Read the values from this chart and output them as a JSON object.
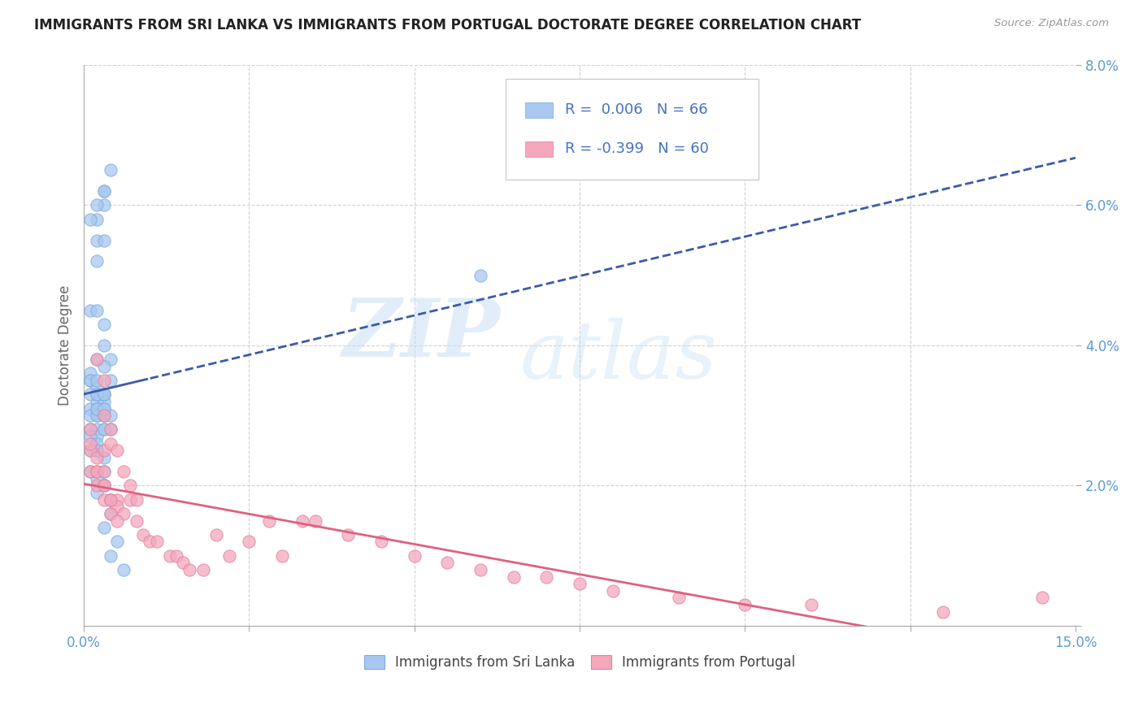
{
  "title": "IMMIGRANTS FROM SRI LANKA VS IMMIGRANTS FROM PORTUGAL DOCTORATE DEGREE CORRELATION CHART",
  "source": "Source: ZipAtlas.com",
  "ylabel": "Doctorate Degree",
  "xlim": [
    0.0,
    0.15
  ],
  "ylim": [
    0.0,
    0.08
  ],
  "xtick_positions": [
    0.0,
    0.025,
    0.05,
    0.075,
    0.1,
    0.125,
    0.15
  ],
  "xticklabels_shown": {
    "0.0": "0.0%",
    "0.15": "15.0%"
  },
  "ytick_positions": [
    0.0,
    0.02,
    0.04,
    0.06,
    0.08
  ],
  "yticklabels": [
    "",
    "2.0%",
    "4.0%",
    "6.0%",
    "8.0%"
  ],
  "sri_lanka_color": "#A8C8F0",
  "portugal_color": "#F4A8BC",
  "sri_lanka_line_color": "#3B5BA5",
  "portugal_line_color": "#E06080",
  "legend_label1": "Immigrants from Sri Lanka",
  "legend_label2": "Immigrants from Portugal",
  "legend_r1_prefix": "R = ",
  "legend_r1_value": " 0.006",
  "legend_r1_n": "N = 66",
  "legend_r2_prefix": "R = ",
  "legend_r2_value": "-0.399",
  "legend_r2_n": "N = 60",
  "watermark_line1": "ZIP",
  "watermark_line2": "atlas",
  "background_color": "#FFFFFF",
  "grid_color": "#CCCCCC",
  "sri_lanka_x": [
    0.001,
    0.002,
    0.001,
    0.001,
    0.002,
    0.002,
    0.001,
    0.002,
    0.001,
    0.001,
    0.002,
    0.002,
    0.003,
    0.003,
    0.001,
    0.001,
    0.002,
    0.002,
    0.003,
    0.003,
    0.002,
    0.003,
    0.003,
    0.004,
    0.003,
    0.002,
    0.001,
    0.002,
    0.003,
    0.002,
    0.001,
    0.002,
    0.003,
    0.003,
    0.004,
    0.002,
    0.003,
    0.002,
    0.003,
    0.004,
    0.002,
    0.003,
    0.004,
    0.003,
    0.002,
    0.003,
    0.003,
    0.004,
    0.003,
    0.002,
    0.004,
    0.003,
    0.002,
    0.001,
    0.002,
    0.004,
    0.003,
    0.005,
    0.004,
    0.006,
    0.06,
    0.001,
    0.002,
    0.003,
    0.002,
    0.003
  ],
  "sri_lanka_y": [
    0.031,
    0.03,
    0.03,
    0.028,
    0.028,
    0.027,
    0.027,
    0.026,
    0.025,
    0.035,
    0.032,
    0.031,
    0.033,
    0.032,
    0.036,
    0.035,
    0.034,
    0.033,
    0.031,
    0.03,
    0.058,
    0.06,
    0.062,
    0.065,
    0.062,
    0.06,
    0.058,
    0.055,
    0.055,
    0.052,
    0.045,
    0.045,
    0.043,
    0.04,
    0.038,
    0.035,
    0.033,
    0.038,
    0.037,
    0.035,
    0.03,
    0.03,
    0.03,
    0.028,
    0.025,
    0.024,
    0.02,
    0.018,
    0.022,
    0.021,
    0.028,
    0.028,
    0.025,
    0.022,
    0.019,
    0.016,
    0.014,
    0.012,
    0.01,
    0.008,
    0.05,
    0.033,
    0.033,
    0.033,
    0.031,
    0.031
  ],
  "portugal_x": [
    0.001,
    0.001,
    0.002,
    0.002,
    0.003,
    0.003,
    0.004,
    0.005,
    0.005,
    0.006,
    0.001,
    0.001,
    0.002,
    0.002,
    0.003,
    0.003,
    0.003,
    0.004,
    0.004,
    0.005,
    0.002,
    0.003,
    0.003,
    0.004,
    0.004,
    0.005,
    0.006,
    0.007,
    0.007,
    0.008,
    0.008,
    0.009,
    0.01,
    0.011,
    0.013,
    0.014,
    0.015,
    0.016,
    0.018,
    0.02,
    0.022,
    0.025,
    0.028,
    0.03,
    0.033,
    0.035,
    0.04,
    0.045,
    0.05,
    0.055,
    0.06,
    0.065,
    0.07,
    0.075,
    0.08,
    0.09,
    0.1,
    0.11,
    0.13,
    0.145
  ],
  "portugal_y": [
    0.025,
    0.022,
    0.022,
    0.02,
    0.02,
    0.018,
    0.018,
    0.018,
    0.017,
    0.016,
    0.028,
    0.026,
    0.024,
    0.022,
    0.025,
    0.022,
    0.02,
    0.018,
    0.016,
    0.015,
    0.038,
    0.035,
    0.03,
    0.028,
    0.026,
    0.025,
    0.022,
    0.02,
    0.018,
    0.018,
    0.015,
    0.013,
    0.012,
    0.012,
    0.01,
    0.01,
    0.009,
    0.008,
    0.008,
    0.013,
    0.01,
    0.012,
    0.015,
    0.01,
    0.015,
    0.015,
    0.013,
    0.012,
    0.01,
    0.009,
    0.008,
    0.007,
    0.007,
    0.006,
    0.005,
    0.004,
    0.003,
    0.003,
    0.002,
    0.004
  ]
}
